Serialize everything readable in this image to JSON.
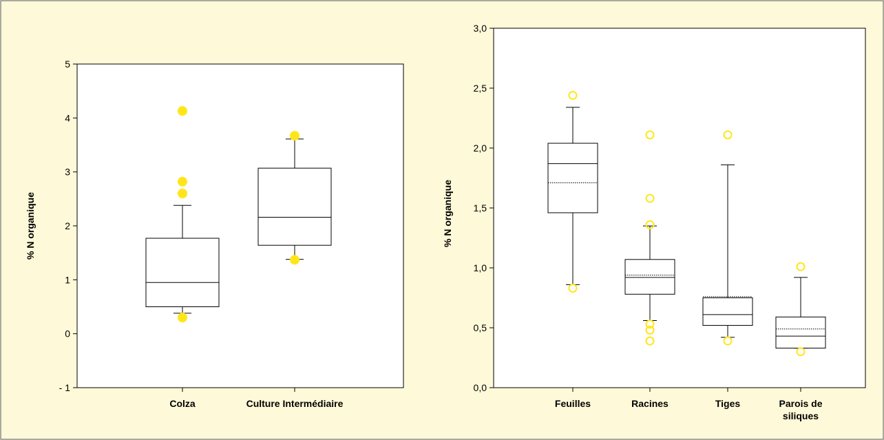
{
  "colors": {
    "background": "#FEF9D8",
    "frame": "#555555",
    "plot_bg": "#FFFFFF",
    "outlier": "#FFE619",
    "box": "#000000"
  },
  "chart_data": [
    {
      "type": "box",
      "ylabel": "% N organique",
      "ylim": [
        -1,
        5
      ],
      "yticks": [
        -1,
        0,
        1,
        2,
        3,
        4,
        5
      ],
      "ytick_labels": [
        "- 1",
        "0",
        "1",
        "2",
        "3",
        "4",
        "5"
      ],
      "outlier_style": "filled",
      "show_mean": false,
      "categories": [
        "Colza",
        "Culture Intermédiaire"
      ],
      "boxes": [
        {
          "whisker_low": 0.38,
          "q1": 0.5,
          "median": 0.95,
          "q3": 1.77,
          "whisker_high": 2.38,
          "outliers": [
            0.3,
            2.6,
            2.82,
            4.13
          ]
        },
        {
          "whisker_low": 1.38,
          "q1": 1.64,
          "median": 2.16,
          "q3": 3.07,
          "whisker_high": 3.61,
          "outliers": [
            1.37,
            3.67
          ]
        }
      ]
    },
    {
      "type": "box",
      "ylabel": "% N organique",
      "ylim": [
        0,
        3
      ],
      "yticks": [
        0,
        0.5,
        1,
        1.5,
        2,
        2.5,
        3
      ],
      "ytick_labels": [
        "0,0",
        "0,5",
        "1,0",
        "1,5",
        "2,0",
        "2,5",
        "3,0"
      ],
      "outlier_style": "open",
      "show_mean": true,
      "categories": [
        "Feuilles",
        "Racines",
        "Tiges",
        "Parois de siliques"
      ],
      "boxes": [
        {
          "whisker_low": 0.86,
          "q1": 1.46,
          "median": 1.87,
          "mean": 1.71,
          "q3": 2.04,
          "whisker_high": 2.34,
          "outliers": [
            0.83,
            2.44
          ]
        },
        {
          "whisker_low": 0.56,
          "q1": 0.78,
          "median": 0.92,
          "mean": 0.94,
          "q3": 1.07,
          "whisker_high": 1.35,
          "outliers": [
            0.39,
            0.48,
            0.53,
            1.36,
            1.58,
            2.11
          ]
        },
        {
          "whisker_low": 0.42,
          "q1": 0.52,
          "median": 0.61,
          "mean": 0.76,
          "q3": 0.75,
          "whisker_high": 1.86,
          "outliers": [
            0.39,
            2.11
          ]
        },
        {
          "whisker_low": 0.33,
          "q1": 0.33,
          "median": 0.43,
          "mean": 0.49,
          "q3": 0.59,
          "whisker_high": 0.92,
          "outliers": [
            0.3,
            1.01
          ]
        }
      ]
    }
  ]
}
